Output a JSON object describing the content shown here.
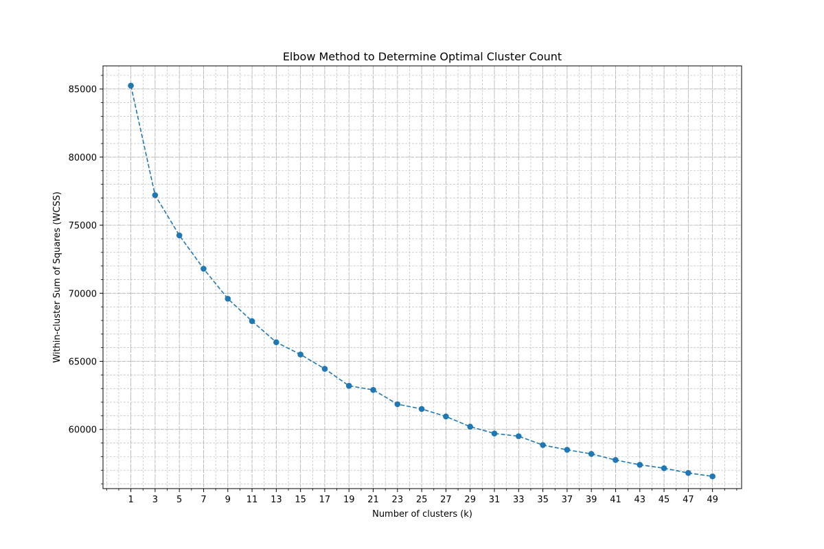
{
  "chart_data": {
    "type": "line",
    "title": "Elbow Method to Determine Optimal Cluster Count",
    "xlabel": "Number of clusters (k)",
    "ylabel": "Within-cluster Sum of Squares (WCSS)",
    "x": [
      1,
      3,
      5,
      7,
      9,
      11,
      13,
      15,
      17,
      19,
      21,
      23,
      25,
      27,
      29,
      31,
      33,
      35,
      37,
      39,
      41,
      43,
      45,
      47,
      49
    ],
    "xticks": [
      1,
      3,
      5,
      7,
      9,
      11,
      13,
      15,
      17,
      19,
      21,
      23,
      25,
      27,
      29,
      31,
      33,
      35,
      37,
      39,
      41,
      43,
      45,
      47,
      49
    ],
    "yticks": [
      60000,
      65000,
      70000,
      75000,
      80000,
      85000
    ],
    "xlim": [
      -1.3,
      51.4
    ],
    "ylim": [
      55650,
      86700
    ],
    "series": [
      {
        "values": [
          85250,
          77200,
          74250,
          71800,
          69600,
          67950,
          66400,
          65500,
          64450,
          63200,
          62900,
          61850,
          61500,
          60950,
          60200,
          59700,
          59500,
          58850,
          58500,
          58200,
          57750,
          57400,
          57150,
          56800,
          56550
        ]
      }
    ],
    "marker": "circle",
    "line_style": "dashed",
    "grid": true,
    "minor_grid": true,
    "colors": {
      "series": "#1f77b4",
      "grid": "#b0b0b0",
      "axis": "#000000"
    }
  }
}
